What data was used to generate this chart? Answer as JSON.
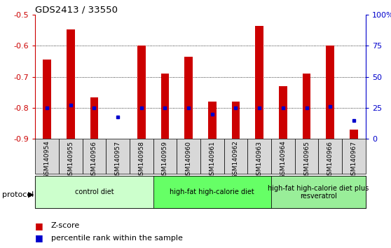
{
  "title": "GDS2413 / 33550",
  "samples": [
    "GSM140954",
    "GSM140955",
    "GSM140956",
    "GSM140957",
    "GSM140958",
    "GSM140959",
    "GSM140960",
    "GSM140961",
    "GSM140962",
    "GSM140963",
    "GSM140964",
    "GSM140965",
    "GSM140966",
    "GSM140967"
  ],
  "zscore": [
    -0.645,
    -0.548,
    -0.765,
    -0.905,
    -0.6,
    -0.69,
    -0.635,
    -0.78,
    -0.78,
    -0.535,
    -0.73,
    -0.69,
    -0.6,
    -0.87
  ],
  "percentile_y": [
    -0.8,
    -0.79,
    -0.8,
    -0.83,
    -0.8,
    -0.8,
    -0.8,
    -0.82,
    -0.8,
    -0.8,
    -0.8,
    -0.8,
    -0.795,
    -0.84
  ],
  "ylim": [
    -0.9,
    -0.5
  ],
  "yticks_left": [
    -0.9,
    -0.8,
    -0.7,
    -0.6,
    -0.5
  ],
  "ytick_labels_left": [
    "-0.9",
    "-0.8",
    "-0.7",
    "-0.6",
    "-0.5"
  ],
  "yticks_right_pct": [
    0,
    25,
    50,
    75,
    100
  ],
  "ytick_labels_right": [
    "0",
    "25",
    "50",
    "75",
    "100%"
  ],
  "bar_color": "#cc0000",
  "dot_color": "#0000cc",
  "gridline_y": [
    -0.6,
    -0.7,
    -0.8
  ],
  "protocols": [
    {
      "label": "control diet",
      "start": 0,
      "end": 4,
      "color": "#ccffcc"
    },
    {
      "label": "high-fat high-calorie diet",
      "start": 5,
      "end": 9,
      "color": "#66ff66"
    },
    {
      "label": "high-fat high-calorie diet plus\nresveratrol",
      "start": 10,
      "end": 13,
      "color": "#99ee99"
    }
  ],
  "protocol_label": "protocol",
  "legend_zscore": "Z-score",
  "legend_percentile": "percentile rank within the sample",
  "baseline": -0.9,
  "bar_width": 0.35,
  "tick_box_color": "#d8d8d8"
}
